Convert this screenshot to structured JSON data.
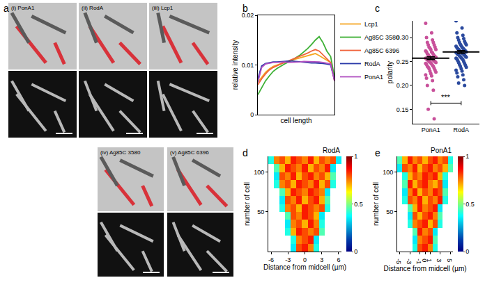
{
  "panel_labels": [
    "a",
    "b",
    "c",
    "d",
    "e"
  ],
  "micrographs": [
    "(i) PonA1",
    "(ii) RodA",
    "(iii) Lcp1",
    "(iv) Ag85C 3580",
    "(v) Ag85C 6396"
  ],
  "chart_data": [
    {
      "type": "line",
      "xlabel": "cell length",
      "ylabel": "relative intensity",
      "x": [
        0,
        0.05,
        0.1,
        0.15,
        0.2,
        0.25,
        0.3,
        0.35,
        0.4,
        0.45,
        0.5,
        0.55,
        0.6,
        0.65,
        0.7,
        0.75,
        0.8,
        0.85,
        0.9,
        0.95,
        1
      ],
      "xlim": [
        0,
        1
      ],
      "ylim": [
        0,
        0.02
      ],
      "yticks": [
        0,
        0.01,
        0.02
      ],
      "tick_labels": "y",
      "legend": "right",
      "series": [
        {
          "name": "Lcp1",
          "color": "#f5a623",
          "values": [
            0.0065,
            0.0075,
            0.0085,
            0.0092,
            0.0097,
            0.01,
            0.0103,
            0.0106,
            0.0108,
            0.011,
            0.0112,
            0.0114,
            0.0116,
            0.0119,
            0.0121,
            0.0123,
            0.0119,
            0.0114,
            0.011,
            0.0105,
            0.007
          ]
        },
        {
          "name": "Ag85C 3580",
          "color": "#3cb034",
          "values": [
            0.004,
            0.0055,
            0.0068,
            0.0078,
            0.0087,
            0.0093,
            0.0098,
            0.0102,
            0.0106,
            0.011,
            0.0115,
            0.012,
            0.0126,
            0.0133,
            0.0141,
            0.015,
            0.0157,
            0.0145,
            0.0128,
            0.0117,
            0.0075
          ]
        },
        {
          "name": "Ag85C 6396",
          "color": "#f0643c",
          "values": [
            0.006,
            0.0072,
            0.0082,
            0.009,
            0.0095,
            0.0099,
            0.0102,
            0.0105,
            0.0108,
            0.0111,
            0.0114,
            0.0117,
            0.012,
            0.0124,
            0.0128,
            0.0131,
            0.0128,
            0.012,
            0.0112,
            0.0105,
            0.0068
          ]
        },
        {
          "name": "RodA",
          "color": "#2a3aa8",
          "values": [
            0.0072,
            0.0098,
            0.0103,
            0.0105,
            0.0106,
            0.0106,
            0.0107,
            0.0108,
            0.0108,
            0.0108,
            0.0107,
            0.0107,
            0.0106,
            0.0105,
            0.0104,
            0.0104,
            0.0104,
            0.0103,
            0.0102,
            0.01,
            0.007
          ]
        },
        {
          "name": "PonA1",
          "color": "#b050c0",
          "values": [
            0.0065,
            0.0095,
            0.0102,
            0.0104,
            0.0105,
            0.0105,
            0.0106,
            0.0106,
            0.0105,
            0.0105,
            0.0106,
            0.0106,
            0.0107,
            0.0107,
            0.0106,
            0.0106,
            0.0106,
            0.0105,
            0.0104,
            0.0102,
            0.0068
          ]
        }
      ]
    },
    {
      "type": "scatter",
      "ylabel": "polarity",
      "categories": [
        "PonA1",
        "RodA"
      ],
      "colors": [
        "#c8509a",
        "#2b4a9e"
      ],
      "values": [
        [
          0.33,
          0.31,
          0.3,
          0.295,
          0.29,
          0.29,
          0.285,
          0.285,
          0.28,
          0.28,
          0.278,
          0.275,
          0.275,
          0.272,
          0.27,
          0.27,
          0.268,
          0.266,
          0.265,
          0.264,
          0.262,
          0.261,
          0.26,
          0.26,
          0.259,
          0.258,
          0.257,
          0.256,
          0.255,
          0.255,
          0.254,
          0.253,
          0.252,
          0.251,
          0.25,
          0.25,
          0.249,
          0.248,
          0.247,
          0.246,
          0.245,
          0.244,
          0.242,
          0.24,
          0.24,
          0.238,
          0.236,
          0.235,
          0.232,
          0.23,
          0.228,
          0.225,
          0.222,
          0.22,
          0.215,
          0.21,
          0.2,
          0.19,
          0.15,
          0.13
        ],
        [
          0.335,
          0.32,
          0.31,
          0.305,
          0.3,
          0.298,
          0.295,
          0.292,
          0.29,
          0.288,
          0.286,
          0.285,
          0.283,
          0.282,
          0.28,
          0.279,
          0.278,
          0.277,
          0.276,
          0.275,
          0.274,
          0.273,
          0.272,
          0.271,
          0.27,
          0.27,
          0.269,
          0.268,
          0.267,
          0.266,
          0.265,
          0.265,
          0.264,
          0.263,
          0.262,
          0.261,
          0.26,
          0.259,
          0.258,
          0.257,
          0.256,
          0.255,
          0.254,
          0.252,
          0.25,
          0.248,
          0.246,
          0.244,
          0.242,
          0.24,
          0.238,
          0.235,
          0.232,
          0.23,
          0.226,
          0.222,
          0.218,
          0.212,
          0.205,
          0.2
        ]
      ],
      "means": [
        0.257,
        0.27
      ],
      "errors": [
        0.003,
        0.003
      ],
      "ylim": [
        0.12,
        0.335
      ],
      "yticks": [
        0.15,
        {
          "value": 0.2,
          "label": "0.20"
        },
        0.25,
        {
          "value": 0.3,
          "label": "0.30"
        }
      ],
      "annotations": [
        {
          "text": "***"
        }
      ]
    },
    {
      "type": "heatmap",
      "title": "RodA",
      "xlabel": "Distance from midcell (µm)",
      "ylabel": "number of cell",
      "x": [
        -6,
        -5,
        -4,
        -3,
        -2,
        -1,
        0,
        1,
        2,
        3,
        4,
        5,
        6
      ],
      "y": [
        5,
        15,
        25,
        35,
        45,
        55,
        65,
        75,
        85,
        95,
        105,
        115
      ],
      "z": [
        [
          null,
          null,
          null,
          null,
          0.35,
          0.8,
          0.85,
          0.75,
          0.4,
          null,
          null,
          null,
          null
        ],
        [
          null,
          null,
          null,
          null,
          0.4,
          0.75,
          0.8,
          0.85,
          0.35,
          null,
          null,
          null,
          null
        ],
        [
          null,
          null,
          null,
          0.4,
          0.7,
          0.85,
          0.8,
          0.75,
          0.8,
          0.45,
          null,
          null,
          null
        ],
        [
          null,
          null,
          null,
          0.35,
          0.75,
          0.8,
          0.7,
          0.85,
          0.75,
          0.4,
          null,
          null,
          null
        ],
        [
          null,
          null,
          null,
          0.45,
          0.8,
          0.75,
          0.85,
          0.8,
          0.7,
          0.35,
          null,
          null,
          null
        ],
        [
          null,
          null,
          0.4,
          0.75,
          0.8,
          0.7,
          0.85,
          0.8,
          0.75,
          0.8,
          0.4,
          null,
          null
        ],
        [
          null,
          null,
          0.35,
          0.8,
          0.75,
          0.85,
          0.7,
          0.8,
          0.85,
          0.7,
          0.45,
          null,
          null
        ],
        [
          null,
          null,
          0.45,
          0.7,
          0.85,
          0.8,
          0.75,
          0.85,
          0.8,
          0.75,
          0.35,
          null,
          null
        ],
        [
          null,
          0.4,
          0.75,
          0.8,
          0.7,
          0.85,
          0.8,
          0.75,
          0.85,
          0.7,
          0.8,
          0.4,
          null
        ],
        [
          null,
          0.35,
          0.8,
          0.75,
          0.85,
          0.7,
          0.8,
          0.85,
          0.75,
          0.8,
          0.7,
          0.45,
          null
        ],
        [
          null,
          0.45,
          0.7,
          0.85,
          0.8,
          0.75,
          0.85,
          0.7,
          0.8,
          0.75,
          0.85,
          0.35,
          null
        ],
        [
          0.4,
          0.75,
          0.8,
          0.7,
          0.85,
          0.8,
          0.75,
          0.85,
          0.7,
          0.8,
          0.75,
          0.8,
          0.35
        ]
      ],
      "xlim": [
        -6.5,
        6.5
      ],
      "xticks": [
        -6,
        -3,
        0,
        3,
        6
      ],
      "ylim": [
        0,
        120
      ],
      "yticks": [
        50,
        100
      ],
      "zlim": [
        0,
        1
      ],
      "zticks": [
        0,
        0.5,
        1
      ]
    },
    {
      "type": "heatmap",
      "title": "PonA1",
      "xlabel": "Distance from midcell (µm)",
      "ylabel": "number of cell",
      "x": [
        -5,
        -4,
        -3,
        -2,
        -1,
        0,
        1,
        2,
        3,
        4,
        5
      ],
      "y": [
        5,
        15,
        25,
        35,
        45,
        55,
        65,
        75,
        85,
        95,
        105,
        115
      ],
      "z": [
        [
          null,
          null,
          null,
          0.4,
          0.8,
          0.85,
          0.75,
          0.4,
          null,
          null,
          null
        ],
        [
          null,
          null,
          null,
          0.35,
          0.75,
          0.8,
          0.85,
          0.45,
          null,
          null,
          null
        ],
        [
          null,
          null,
          null,
          0.45,
          0.85,
          0.75,
          0.8,
          0.35,
          null,
          null,
          null
        ],
        [
          null,
          null,
          0.4,
          0.75,
          0.8,
          0.85,
          0.7,
          0.8,
          0.4,
          null,
          null
        ],
        [
          null,
          null,
          0.35,
          0.8,
          0.7,
          0.8,
          0.85,
          0.75,
          0.45,
          null,
          null
        ],
        [
          null,
          null,
          0.45,
          0.7,
          0.85,
          0.75,
          0.8,
          0.85,
          0.35,
          null,
          null
        ],
        [
          null,
          0.4,
          0.8,
          0.75,
          0.85,
          0.7,
          0.8,
          0.75,
          0.85,
          0.4,
          null
        ],
        [
          null,
          0.35,
          0.75,
          0.85,
          0.7,
          0.8,
          0.75,
          0.85,
          0.8,
          0.45,
          null
        ],
        [
          null,
          0.45,
          0.85,
          0.7,
          0.8,
          0.85,
          0.75,
          0.7,
          0.8,
          0.35,
          null
        ],
        [
          null,
          0.4,
          0.7,
          0.8,
          0.75,
          0.85,
          0.8,
          0.85,
          0.7,
          0.4,
          null
        ],
        [
          0.35,
          0.8,
          0.75,
          0.85,
          0.7,
          0.8,
          0.85,
          0.75,
          0.8,
          0.7,
          0.45
        ],
        [
          0.45,
          0.7,
          0.85,
          0.75,
          0.8,
          0.7,
          0.8,
          0.85,
          0.75,
          0.8,
          0.4
        ]
      ],
      "xlim": [
        -5.5,
        5.5
      ],
      "xticks": [
        -5,
        -3,
        -1,
        0,
        1,
        3,
        5
      ],
      "ylim": [
        0,
        120
      ],
      "yticks": [
        50,
        100
      ],
      "zlim": [
        0,
        1
      ],
      "zticks": [
        0,
        0.5,
        1
      ]
    }
  ]
}
